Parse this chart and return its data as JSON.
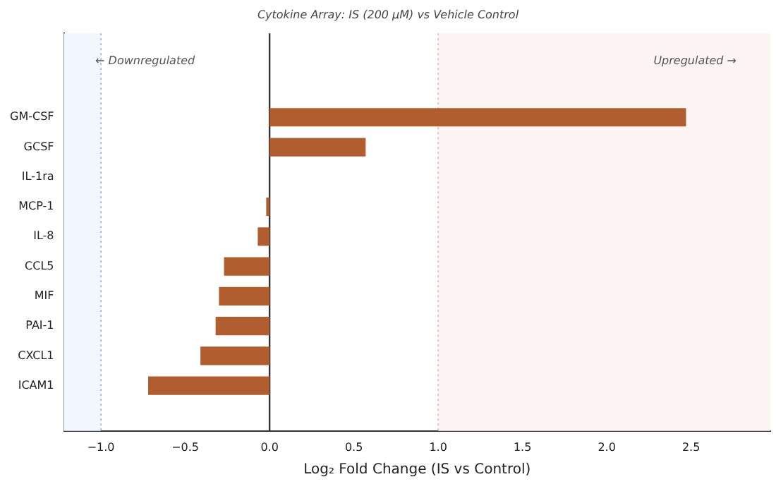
{
  "chart_data": {
    "type": "bar",
    "orientation": "horizontal",
    "title": "Cytokine Array: IS (200 µM) vs Vehicle Control",
    "xlabel": "Log₂ Fold Change (IS vs Control)",
    "categories": [
      "GM-CSF",
      "GCSF",
      "IL-1ra",
      "MCP-1",
      "IL-8",
      "CCL5",
      "MIF",
      "PAI-1",
      "CXCL1",
      "ICAM1"
    ],
    "values": [
      2.47,
      0.57,
      0.0,
      -0.02,
      -0.07,
      -0.27,
      -0.3,
      -0.32,
      -0.41,
      -0.72
    ],
    "color": "#b05e2f",
    "xlim": [
      -1.22,
      2.97
    ],
    "xticks": [
      {
        "value": -1,
        "label": "−1.0"
      },
      {
        "value": -0.5,
        "label": "−0.5"
      },
      {
        "value": 0,
        "label": "0.0"
      },
      {
        "value": 0.5,
        "label": "0.5"
      },
      {
        "value": 1,
        "label": "1.0"
      },
      {
        "value": 1.5,
        "label": "1.5"
      },
      {
        "value": 2,
        "label": "2.0"
      },
      {
        "value": 2.5,
        "label": "2.5"
      }
    ],
    "ref_lines": [
      {
        "axis": "x",
        "value": 0,
        "color": "#333333",
        "line_style": "solid"
      },
      {
        "axis": "x",
        "value": -1,
        "color": "#9aa8d8",
        "line_style": "dotted"
      },
      {
        "axis": "x",
        "value": 1,
        "color": "#e8b0b0",
        "line_style": "dotted"
      }
    ],
    "bands": [
      {
        "axis": "x",
        "from": -1.22,
        "to": -1,
        "color": "#f2f6fe"
      },
      {
        "axis": "x",
        "from": 1,
        "to": 2.97,
        "color": "#fdf4f4"
      }
    ],
    "annotations": [
      "← Downregulated",
      "Upregulated →"
    ],
    "grid": false,
    "legend": false
  }
}
